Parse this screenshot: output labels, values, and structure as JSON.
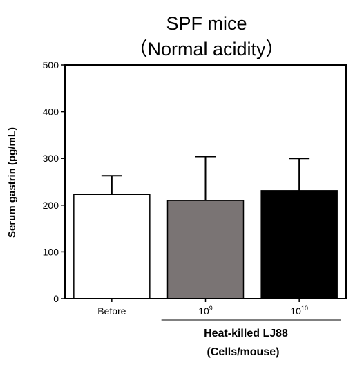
{
  "chart_data": {
    "type": "bar",
    "title": "SPF mice",
    "subtitle": "（Normal acidity）",
    "ylabel": "Serum gastrin (pg/mL)",
    "ylim": [
      0,
      500
    ],
    "yticks": [
      "0",
      "100",
      "200",
      "300",
      "400",
      "500"
    ],
    "categories": [
      {
        "base": "Before",
        "sup": ""
      },
      {
        "base": "10",
        "sup": "9"
      },
      {
        "base": "10",
        "sup": "10"
      }
    ],
    "values": [
      223,
      210,
      231
    ],
    "errors": [
      40,
      94,
      69
    ],
    "bar_colors": [
      "#ffffff",
      "#7a7474",
      "#000000"
    ],
    "group_label": {
      "line1": "Heat-killed  LJ88",
      "line2": "(Cells/mouse)",
      "spans_categories": [
        1,
        2
      ]
    },
    "grid": false,
    "legend": "none"
  }
}
